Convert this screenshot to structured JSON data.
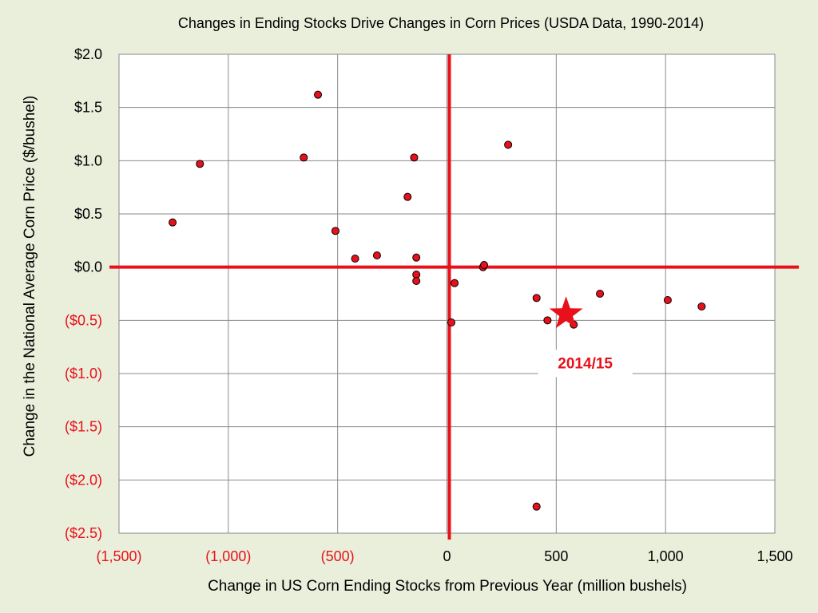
{
  "chart_data": {
    "type": "scatter",
    "title": "Changes in Ending Stocks Drive Changes in Corn Prices (USDA Data, 1990-2014)",
    "xlabel": "Change in US Corn Ending Stocks from Previous Year (million bushels)",
    "ylabel": "Change in the National Average Corn Price ($/bushel)",
    "xlim": [
      -1500,
      1500
    ],
    "ylim": [
      -2.5,
      2.0
    ],
    "x_ticks": [
      {
        "value": -1500,
        "label": "(1,500)"
      },
      {
        "value": -1000,
        "label": "(1,000)"
      },
      {
        "value": -500,
        "label": "(500)"
      },
      {
        "value": 0,
        "label": "0"
      },
      {
        "value": 500,
        "label": "500"
      },
      {
        "value": 1000,
        "label": "1,000"
      },
      {
        "value": 1500,
        "label": "1,500"
      }
    ],
    "y_ticks": [
      {
        "value": 2.0,
        "label": "$2.0"
      },
      {
        "value": 1.5,
        "label": "$1.5"
      },
      {
        "value": 1.0,
        "label": "$1.0"
      },
      {
        "value": 0.5,
        "label": "$0.5"
      },
      {
        "value": 0.0,
        "label": "$0.0"
      },
      {
        "value": -0.5,
        "label": "($0.5)"
      },
      {
        "value": -1.0,
        "label": "($1.0)"
      },
      {
        "value": -1.5,
        "label": "($1.5)"
      },
      {
        "value": -2.0,
        "label": "($2.0)"
      },
      {
        "value": -2.5,
        "label": "($2.5)"
      }
    ],
    "grid": true,
    "points": [
      {
        "x": -1255,
        "y": 0.42
      },
      {
        "x": -1130,
        "y": 0.97
      },
      {
        "x": -655,
        "y": 1.03
      },
      {
        "x": -590,
        "y": 1.62
      },
      {
        "x": -510,
        "y": 0.34
      },
      {
        "x": -420,
        "y": 0.08
      },
      {
        "x": -320,
        "y": 0.11
      },
      {
        "x": -180,
        "y": 0.66
      },
      {
        "x": -150,
        "y": 1.03
      },
      {
        "x": -140,
        "y": 0.09
      },
      {
        "x": -140,
        "y": -0.07
      },
      {
        "x": -140,
        "y": -0.13
      },
      {
        "x": 20,
        "y": -0.52
      },
      {
        "x": 35,
        "y": -0.15
      },
      {
        "x": 165,
        "y": 0.0
      },
      {
        "x": 170,
        "y": 0.02
      },
      {
        "x": 280,
        "y": 1.15
      },
      {
        "x": 410,
        "y": -0.29
      },
      {
        "x": 460,
        "y": -0.5
      },
      {
        "x": 580,
        "y": -0.54
      },
      {
        "x": 700,
        "y": -0.25
      },
      {
        "x": 1010,
        "y": -0.31
      },
      {
        "x": 1165,
        "y": -0.37
      },
      {
        "x": 410,
        "y": -2.25
      }
    ],
    "highlight": {
      "x": 545,
      "y": -0.44,
      "label": "2014/15",
      "marker": "star"
    },
    "colors": {
      "point_fill": "#e8101a",
      "point_stroke": "#000000",
      "axis_lines": "#e8101a",
      "negative_tick_labels": "#e8101a",
      "positive_tick_labels": "#000000",
      "grid": "#8a8a8a",
      "plot_background": "#ffffff",
      "slide_background": "#eaefdc"
    }
  }
}
